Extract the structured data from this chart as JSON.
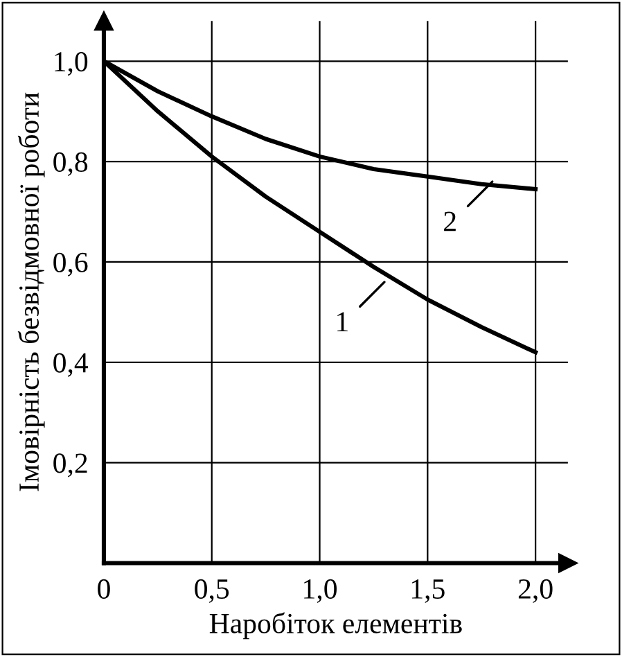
{
  "chart_data": {
    "type": "line",
    "xlabel": "Наробіток елементів",
    "ylabel": "Імовірність безвідмовної роботи",
    "x": [
      0,
      0.25,
      0.5,
      0.75,
      1.0,
      1.25,
      1.5,
      1.75,
      2.0
    ],
    "series": [
      {
        "color": "#000000",
        "values": [
          1.0,
          0.9,
          0.81,
          0.73,
          0.66,
          0.59,
          0.525,
          0.47,
          0.42
        ]
      },
      {
        "color": "#000000",
        "values": [
          1.0,
          0.94,
          0.89,
          0.845,
          0.81,
          0.785,
          0.77,
          0.755,
          0.745
        ]
      }
    ],
    "xlim": [
      0,
      2.15
    ],
    "ylim": [
      0,
      1.08
    ],
    "xticks": [
      0,
      {
        "value": 0.5,
        "label": "0,5"
      },
      {
        "value": 1.0,
        "label": "1,0"
      },
      {
        "value": 1.5,
        "label": "1,5"
      },
      {
        "value": 2.0,
        "label": "2,0"
      }
    ],
    "yticks": [
      {
        "value": 0,
        "label": null
      },
      {
        "value": 0.2,
        "label": "0,2"
      },
      {
        "value": 0.4,
        "label": "0,4"
      },
      {
        "value": 0.6,
        "label": "0,6"
      },
      {
        "value": 0.8,
        "label": "0,8"
      },
      {
        "value": 1.0,
        "label": "1,0"
      }
    ],
    "grid": true,
    "legend": false,
    "marker": "none",
    "line_style": "solid",
    "annotations": [
      {
        "text": "1",
        "x": 1.3,
        "y": 0.56
      },
      {
        "text": "2",
        "x": 1.8,
        "y": 0.76
      }
    ]
  }
}
